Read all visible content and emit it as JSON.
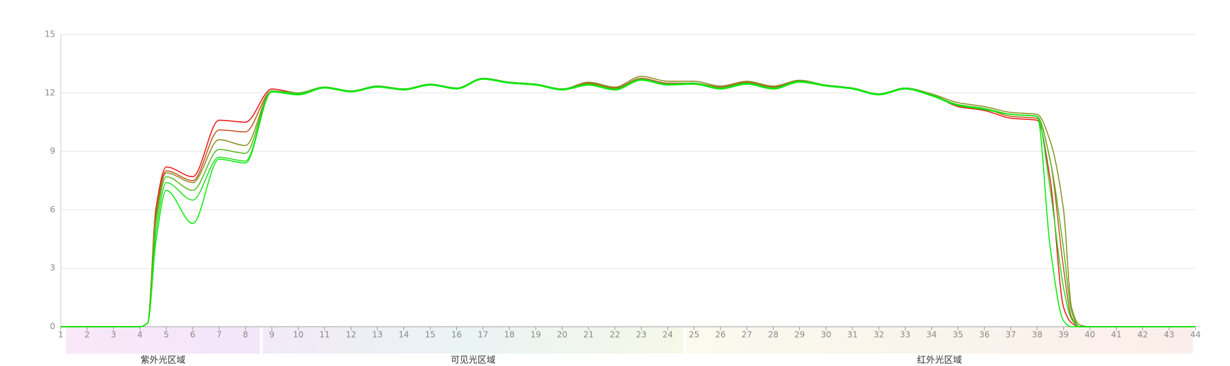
{
  "chart_data": {
    "type": "line",
    "x": [
      1,
      2,
      3,
      4,
      4.3,
      4.6,
      5,
      6,
      7,
      8,
      9,
      10,
      11,
      12,
      13,
      14,
      15,
      16,
      17,
      18,
      19,
      20,
      21,
      22,
      23,
      24,
      25,
      26,
      27,
      28,
      29,
      30,
      31,
      32,
      33,
      34,
      35,
      36,
      37,
      38,
      38.5,
      39,
      39.3,
      39.6,
      40,
      41,
      42,
      43,
      44
    ],
    "series": [
      {
        "color": "#ee1111",
        "values": [
          0,
          0,
          0,
          0,
          0.2,
          6.0,
          8.2,
          7.7,
          10.6,
          10.5,
          12.2,
          12.0,
          12.3,
          12.1,
          12.35,
          12.2,
          12.45,
          12.25,
          12.75,
          12.55,
          12.45,
          12.2,
          12.45,
          12.2,
          12.7,
          12.45,
          12.5,
          12.25,
          12.5,
          12.25,
          12.6,
          12.4,
          12.25,
          11.95,
          12.2,
          11.9,
          11.3,
          11.1,
          10.7,
          10.6,
          7.5,
          1.0,
          0.2,
          0,
          0,
          0,
          0,
          0,
          0
        ]
      },
      {
        "color": "#c0541a",
        "values": [
          0,
          0,
          0,
          0,
          0.2,
          5.8,
          8.0,
          7.5,
          10.1,
          10.0,
          12.1,
          12.0,
          12.3,
          12.1,
          12.35,
          12.2,
          12.45,
          12.25,
          12.75,
          12.55,
          12.45,
          12.2,
          12.5,
          12.25,
          12.75,
          12.5,
          12.5,
          12.3,
          12.55,
          12.3,
          12.6,
          12.4,
          12.25,
          11.95,
          12.25,
          11.9,
          11.4,
          11.2,
          10.8,
          10.7,
          8.5,
          3.0,
          0.5,
          0,
          0,
          0,
          0,
          0,
          0
        ]
      },
      {
        "color": "#8a8a1e",
        "values": [
          0,
          0,
          0,
          0,
          0.2,
          5.6,
          7.9,
          7.4,
          9.6,
          9.3,
          12.1,
          12.0,
          12.3,
          12.1,
          12.35,
          12.2,
          12.45,
          12.25,
          12.75,
          12.55,
          12.45,
          12.2,
          12.55,
          12.3,
          12.85,
          12.6,
          12.6,
          12.35,
          12.6,
          12.35,
          12.65,
          12.4,
          12.25,
          11.95,
          12.25,
          11.95,
          11.5,
          11.3,
          11.0,
          10.9,
          9.5,
          6.0,
          1.0,
          0.1,
          0,
          0,
          0,
          0,
          0
        ]
      },
      {
        "color": "#55b81e",
        "values": [
          0,
          0,
          0,
          0,
          0.2,
          5.3,
          7.7,
          7.0,
          9.1,
          8.9,
          12.1,
          12.0,
          12.3,
          12.1,
          12.35,
          12.2,
          12.45,
          12.25,
          12.75,
          12.55,
          12.45,
          12.2,
          12.45,
          12.2,
          12.7,
          12.45,
          12.5,
          12.25,
          12.5,
          12.25,
          12.6,
          12.4,
          12.25,
          11.95,
          12.25,
          11.9,
          11.4,
          11.2,
          10.9,
          10.8,
          8.5,
          4.0,
          0.8,
          0,
          0,
          0,
          0,
          0,
          0
        ]
      },
      {
        "color": "#22dd22",
        "values": [
          0,
          0,
          0,
          0,
          0.2,
          4.8,
          7.4,
          6.5,
          8.7,
          8.5,
          12.1,
          11.95,
          12.3,
          12.1,
          12.35,
          12.2,
          12.45,
          12.25,
          12.75,
          12.55,
          12.45,
          12.2,
          12.45,
          12.2,
          12.7,
          12.45,
          12.5,
          12.25,
          12.5,
          12.25,
          12.6,
          12.4,
          12.25,
          11.95,
          12.25,
          11.9,
          11.4,
          11.2,
          10.9,
          10.8,
          7.0,
          2.0,
          0.4,
          0,
          0,
          0,
          0,
          0,
          0
        ]
      },
      {
        "color": "#00ee00",
        "values": [
          0,
          0,
          0,
          0,
          0.2,
          4.3,
          7.0,
          5.3,
          8.6,
          8.4,
          12.05,
          11.9,
          12.25,
          12.05,
          12.3,
          12.15,
          12.4,
          12.2,
          12.7,
          12.5,
          12.4,
          12.15,
          12.4,
          12.15,
          12.65,
          12.4,
          12.45,
          12.2,
          12.45,
          12.2,
          12.55,
          12.35,
          12.2,
          11.9,
          12.2,
          11.85,
          11.35,
          11.15,
          10.9,
          10.8,
          4.0,
          0.3,
          0,
          0,
          0,
          0,
          0,
          0,
          0
        ]
      }
    ],
    "xlim": [
      1,
      44
    ],
    "xticks": [
      1,
      2,
      3,
      4,
      5,
      6,
      7,
      8,
      9,
      10,
      11,
      12,
      13,
      14,
      15,
      16,
      17,
      18,
      19,
      20,
      21,
      22,
      23,
      24,
      25,
      26,
      27,
      28,
      29,
      30,
      31,
      32,
      33,
      34,
      35,
      36,
      37,
      38,
      39,
      40,
      41,
      42,
      43,
      44
    ],
    "ylim": [
      0,
      15
    ],
    "yticks": [
      0,
      3,
      6,
      9,
      12,
      15
    ],
    "grid": true,
    "regions": [
      {
        "label": "紫外光区域",
        "range": [
          1.2,
          8.55
        ],
        "color": "#c03cc0"
      },
      {
        "label": "可见光区域",
        "range": [
          8.65,
          24.6
        ],
        "color": "#3c8cc0"
      },
      {
        "label": "红外光区域",
        "range": [
          24.7,
          43.9
        ],
        "color": "#dd2222"
      }
    ]
  }
}
